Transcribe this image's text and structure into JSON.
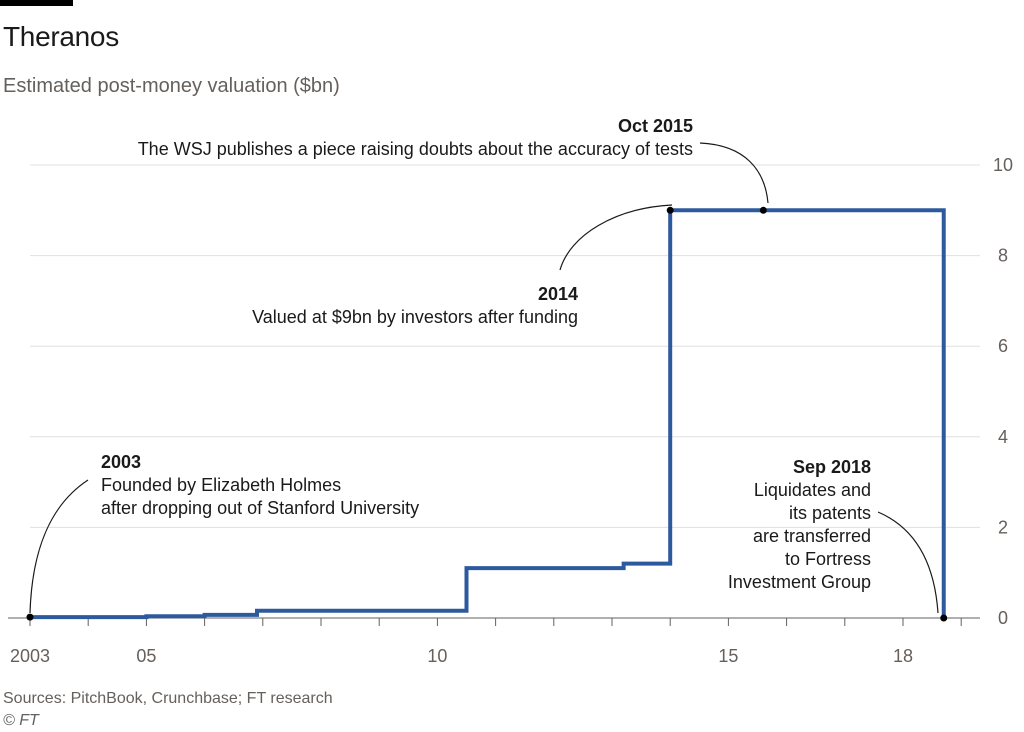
{
  "title": "Theranos",
  "subtitle": "Estimated post-money valuation ($bn)",
  "source": "Sources: PitchBook, Crunchbase; FT research",
  "credit": "© FT",
  "colors": {
    "line": "#2d5a9e",
    "grid": "#e0e0e0",
    "axis": "#66605c"
  },
  "chart_data": {
    "type": "line",
    "step": true,
    "title": "Theranos",
    "ylabel": "Estimated post-money valuation ($bn)",
    "xlim": [
      2003,
      2019.3
    ],
    "ylim": [
      0,
      10
    ],
    "y_ticks": [
      0,
      2,
      4,
      6,
      8,
      10
    ],
    "y_tick_labels": [
      "0",
      "2",
      "4",
      "6",
      "8",
      "10"
    ],
    "y_axis_position": "right",
    "x_tick_labels": [
      {
        "value": 2003,
        "label": "2003"
      },
      {
        "value": 2005,
        "label": "05"
      },
      {
        "value": 2010,
        "label": "10"
      },
      {
        "value": 2015,
        "label": "15"
      },
      {
        "value": 2018,
        "label": "18"
      }
    ],
    "x_minor_ticks": [
      2004,
      2006,
      2007,
      2008,
      2009,
      2011,
      2012,
      2013,
      2014,
      2016,
      2017,
      2019
    ],
    "grid": true,
    "series": [
      {
        "x": [
          2003,
          2005.0,
          2006.0,
          2006.9,
          2010.5,
          2013.2,
          2014.0,
          2018.7,
          2018.7
        ],
        "y": [
          0.02,
          0.04,
          0.07,
          0.16,
          1.1,
          1.2,
          9.0,
          9.0,
          0.0
        ]
      }
    ],
    "markers": [
      {
        "x": 2003,
        "y": 0.02
      },
      {
        "x": 2014.0,
        "y": 9.0
      },
      {
        "x": 2015.6,
        "y": 9.0
      },
      {
        "x": 2018.7,
        "y": 0.0
      }
    ],
    "annotations": [
      {
        "heading": "Oct 2015",
        "lines": [
          "The WSJ publishes a piece raising doubts about the accuracy of tests"
        ]
      },
      {
        "heading": "2014",
        "lines": [
          "Valued at $9bn by investors after funding"
        ]
      },
      {
        "heading": "2003",
        "lines": [
          "Founded by Elizabeth Holmes",
          "after dropping out of Stanford University"
        ]
      },
      {
        "heading": "Sep 2018",
        "lines": [
          "Liquidates and",
          "its patents",
          "are transferred",
          "to Fortress",
          "Investment Group"
        ]
      }
    ]
  }
}
